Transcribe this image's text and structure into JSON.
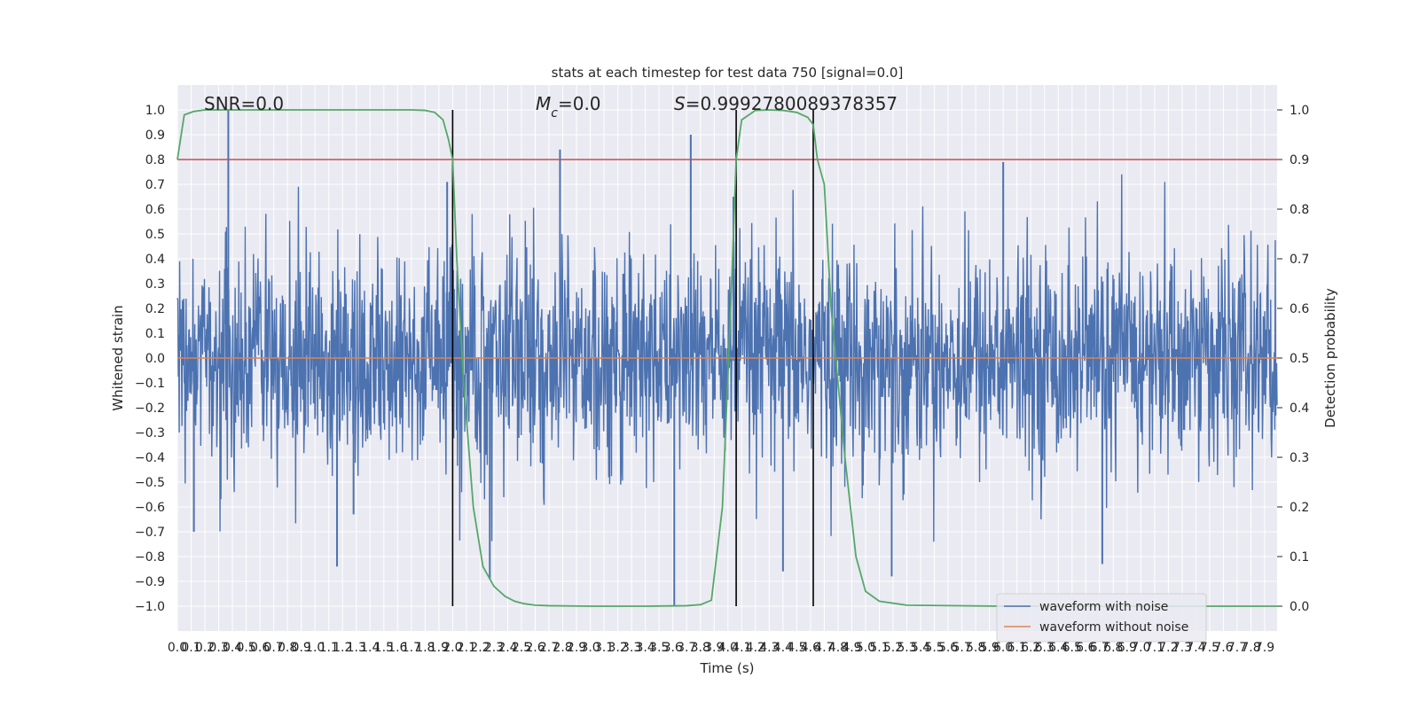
{
  "chart_data": {
    "type": "line",
    "title": "stats at each timestep for test data 750 [signal=0.0]",
    "xlabel": "Time (s)",
    "ylabel": "Whitened strain",
    "y2label": "Detection probability",
    "xlim": [
      0.0,
      7.99
    ],
    "ylim": [
      -1.1,
      1.1
    ],
    "y2lim": [
      -0.05,
      1.05
    ],
    "x_ticks": [
      "0.0",
      "0.1",
      "0.2",
      "0.3",
      "0.4",
      "0.5",
      "0.6",
      "0.7",
      "0.8",
      "0.9",
      "1.0",
      "1.1",
      "1.2",
      "1.3",
      "1.4",
      "1.5",
      "1.6",
      "1.7",
      "1.8",
      "1.9",
      "2.0",
      "2.1",
      "2.2",
      "2.3",
      "2.4",
      "2.5",
      "2.6",
      "2.7",
      "2.8",
      "2.9",
      "3.0",
      "3.1",
      "3.2",
      "3.3",
      "3.4",
      "3.5",
      "3.6",
      "3.7",
      "3.8",
      "3.9",
      "4.0",
      "4.1",
      "4.2",
      "4.3",
      "4.4",
      "4.5",
      "4.6",
      "4.7",
      "4.8",
      "4.9",
      "5.0",
      "5.1",
      "5.2",
      "5.3",
      "5.4",
      "5.5",
      "5.6",
      "5.7",
      "5.8",
      "5.9",
      "6.0",
      "6.1",
      "6.2",
      "6.3",
      "6.4",
      "6.5",
      "6.6",
      "6.7",
      "6.8",
      "6.9",
      "7.0",
      "7.1",
      "7.2",
      "7.3",
      "7.4",
      "7.5",
      "7.6",
      "7.7",
      "7.8",
      "7.9"
    ],
    "y_ticks": [
      "−1.0",
      "−0.9",
      "−0.8",
      "−0.7",
      "−0.6",
      "−0.5",
      "−0.4",
      "−0.3",
      "−0.2",
      "−0.1",
      "0.0",
      "0.1",
      "0.2",
      "0.3",
      "0.4",
      "0.5",
      "0.6",
      "0.7",
      "0.8",
      "0.9",
      "1.0"
    ],
    "y2_ticks": [
      "0.0",
      "0.1",
      "0.2",
      "0.3",
      "0.4",
      "0.5",
      "0.6",
      "0.7",
      "0.8",
      "0.9",
      "1.0"
    ],
    "grid": true,
    "legend_position": "bottom-right",
    "annotations": {
      "snr": "SNR=0.0",
      "mc": "=0.0",
      "mc_symbol": "M",
      "mc_sub": "c",
      "s": "=0.9992780089378357",
      "s_symbol": "S"
    },
    "threshold_line": {
      "axis": "y2",
      "value": 0.9,
      "color": "#c44e52"
    },
    "vertical_lines": {
      "x": [
        2.0,
        4.06,
        4.62
      ],
      "color": "#000000"
    },
    "series": [
      {
        "name": "waveform with noise",
        "color": "#4c72b0",
        "kind": "noise",
        "envelope_abs": 0.45,
        "spikes": [
          {
            "x": 0.37,
            "y": 1.0
          },
          {
            "x": 1.96,
            "y": 0.71
          },
          {
            "x": 2.78,
            "y": 0.84
          },
          {
            "x": 3.73,
            "y": 0.9
          },
          {
            "x": 6.0,
            "y": 0.79
          },
          {
            "x": 0.12,
            "y": -0.7
          },
          {
            "x": 1.16,
            "y": -0.84
          },
          {
            "x": 2.27,
            "y": -0.89
          },
          {
            "x": 3.61,
            "y": -1.0
          },
          {
            "x": 4.4,
            "y": -0.86
          },
          {
            "x": 5.19,
            "y": -0.88
          },
          {
            "x": 6.72,
            "y": -0.83
          },
          {
            "x": 4.04,
            "y": 0.65
          },
          {
            "x": 1.28,
            "y": -0.63
          }
        ]
      },
      {
        "name": "waveform without noise",
        "color": "#dd8452",
        "kind": "flat",
        "value": 0.0
      },
      {
        "name": "detection probability",
        "color": "#55a868",
        "axis": "y2",
        "x": [
          0.0,
          0.05,
          0.12,
          0.2,
          0.3,
          0.5,
          1.0,
          1.5,
          1.7,
          1.8,
          1.87,
          1.93,
          1.97,
          2.0,
          2.03,
          2.08,
          2.15,
          2.22,
          2.3,
          2.38,
          2.45,
          2.52,
          2.6,
          2.7,
          3.0,
          3.4,
          3.7,
          3.8,
          3.88,
          3.96,
          4.02,
          4.06,
          4.1,
          4.2,
          4.3,
          4.4,
          4.5,
          4.58,
          4.62,
          4.65,
          4.7,
          4.75,
          4.85,
          4.93,
          5.0,
          5.1,
          5.3,
          6.0,
          7.0,
          7.99
        ],
        "y": [
          0.9,
          0.99,
          0.997,
          1.0,
          1.0,
          1.0,
          1.0,
          1.0,
          1.0,
          0.999,
          0.995,
          0.98,
          0.94,
          0.9,
          0.7,
          0.45,
          0.2,
          0.08,
          0.04,
          0.02,
          0.01,
          0.005,
          0.002,
          0.001,
          0.0,
          0.0,
          0.001,
          0.003,
          0.012,
          0.2,
          0.6,
          0.9,
          0.98,
          0.999,
          1.0,
          0.999,
          0.995,
          0.985,
          0.97,
          0.9,
          0.85,
          0.6,
          0.3,
          0.1,
          0.03,
          0.01,
          0.002,
          0.0,
          0.0,
          0.0
        ]
      }
    ]
  }
}
